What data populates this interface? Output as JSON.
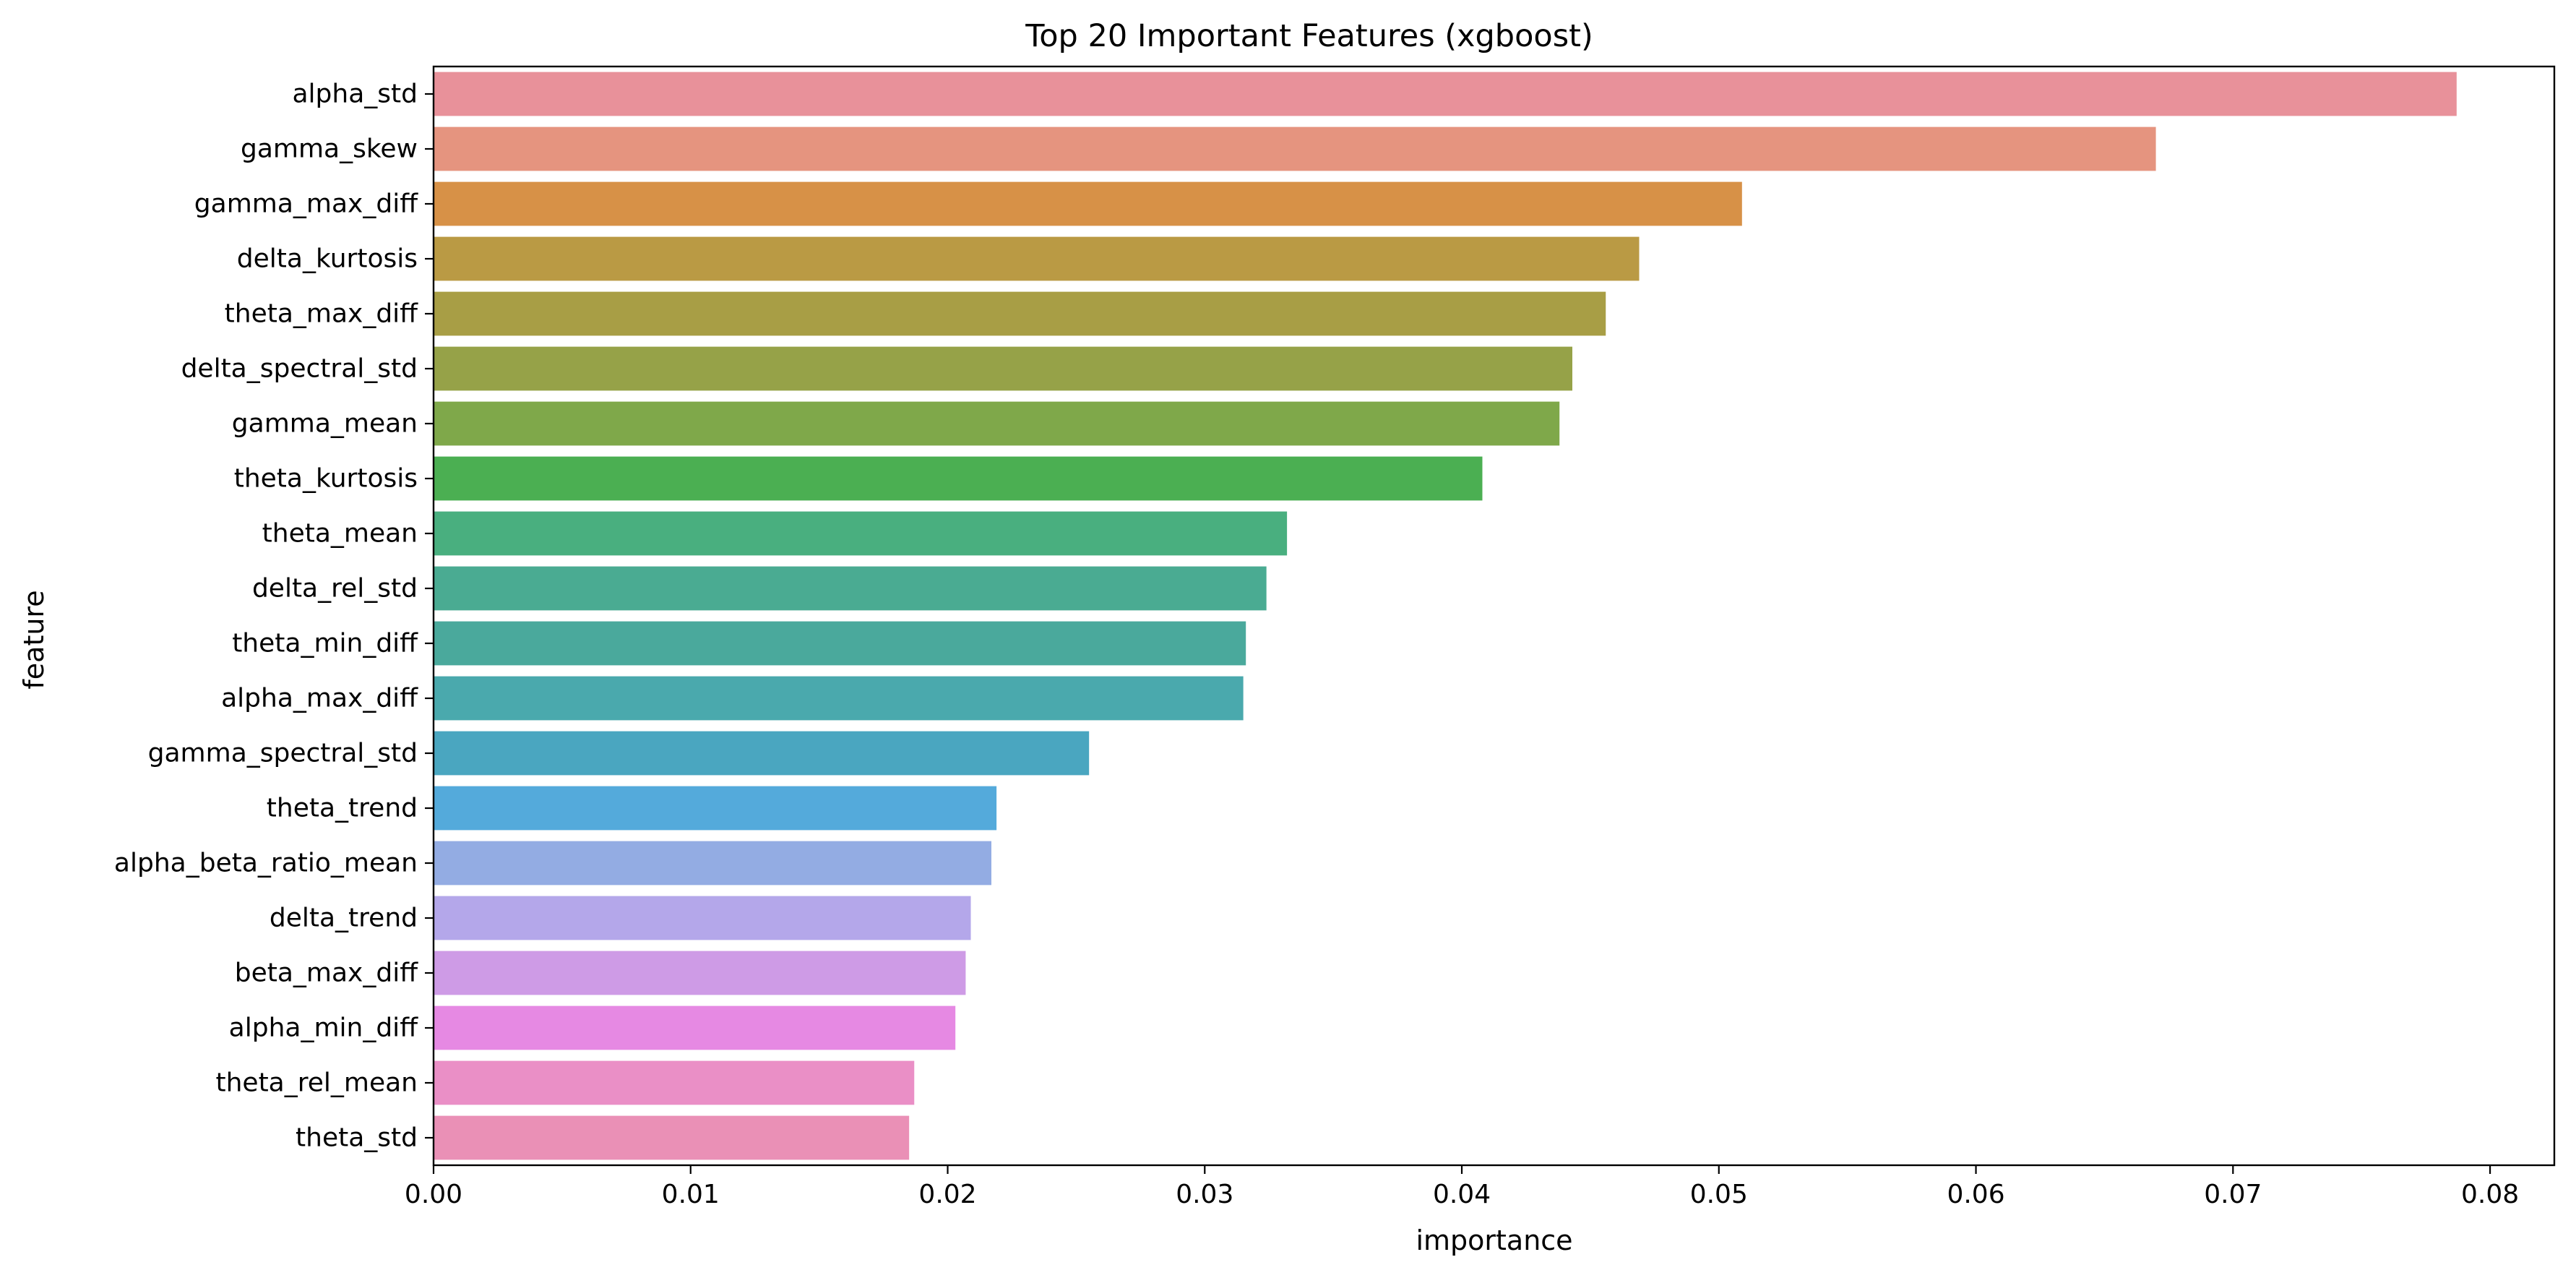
{
  "chart_data": {
    "type": "bar",
    "orientation": "horizontal",
    "title": "Top 20 Important Features (xgboost)",
    "xlabel": "importance",
    "ylabel": "feature",
    "xlim": [
      0,
      0.0825
    ],
    "xticks": [
      0.0,
      0.01,
      0.02,
      0.03,
      0.04,
      0.05,
      0.06,
      0.07,
      0.08
    ],
    "xtick_labels": [
      "0.00",
      "0.01",
      "0.02",
      "0.03",
      "0.04",
      "0.05",
      "0.06",
      "0.07",
      "0.08"
    ],
    "grid": false,
    "legend": "none",
    "categories": [
      "alpha_std",
      "gamma_skew",
      "gamma_max_diff",
      "delta_kurtosis",
      "theta_max_diff",
      "delta_spectral_std",
      "gamma_mean",
      "theta_kurtosis",
      "theta_mean",
      "delta_rel_std",
      "theta_min_diff",
      "alpha_max_diff",
      "gamma_spectral_std",
      "theta_trend",
      "alpha_beta_ratio_mean",
      "delta_trend",
      "beta_max_diff",
      "alpha_min_diff",
      "theta_rel_mean",
      "theta_std"
    ],
    "values": [
      0.0787,
      0.067,
      0.0509,
      0.0469,
      0.0456,
      0.0443,
      0.0438,
      0.0408,
      0.0332,
      0.0324,
      0.0316,
      0.0315,
      0.0255,
      0.0219,
      0.0217,
      0.0209,
      0.0207,
      0.0203,
      0.0187,
      0.0185
    ],
    "colors": [
      "#E8919A",
      "#E5947F",
      "#D79147",
      "#BA9A44",
      "#A89E45",
      "#96A248",
      "#7FA84A",
      "#4BAF52",
      "#49AF7F",
      "#4AAB92",
      "#4AA99C",
      "#4AA9AD",
      "#4AA6C0",
      "#54AADB",
      "#93ACE3",
      "#B4A7EA",
      "#CE9BE6",
      "#E689E3",
      "#EA8FC6",
      "#EA90B6"
    ]
  }
}
